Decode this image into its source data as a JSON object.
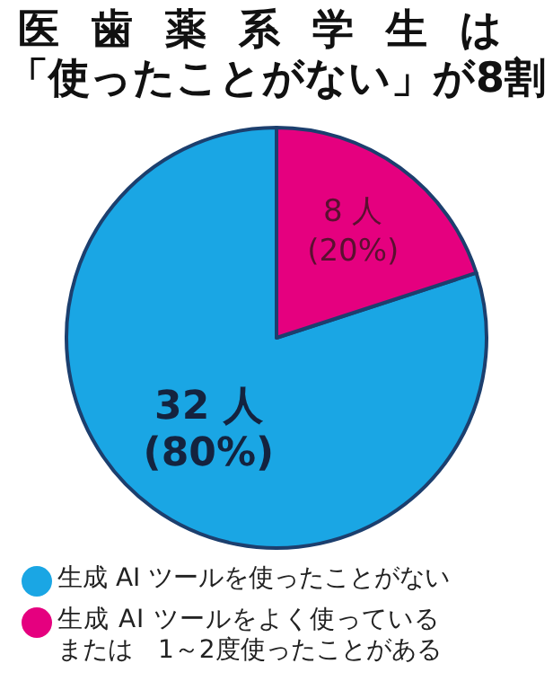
{
  "chart_data": {
    "type": "pie",
    "title": "医歯薬系学生は「使ったことがない」が8割",
    "categories": [
      "生成 AI ツールを使ったことがない",
      "生成 AI ツールをよく使っているまたは　1～2度使ったことがある"
    ],
    "values": [
      32,
      8
    ],
    "value_labels": [
      "32 人\n(80%)",
      "8 人\n(20%)"
    ],
    "colors": [
      "#1aa6e4",
      "#e5007f"
    ],
    "legend": "bottom"
  }
}
